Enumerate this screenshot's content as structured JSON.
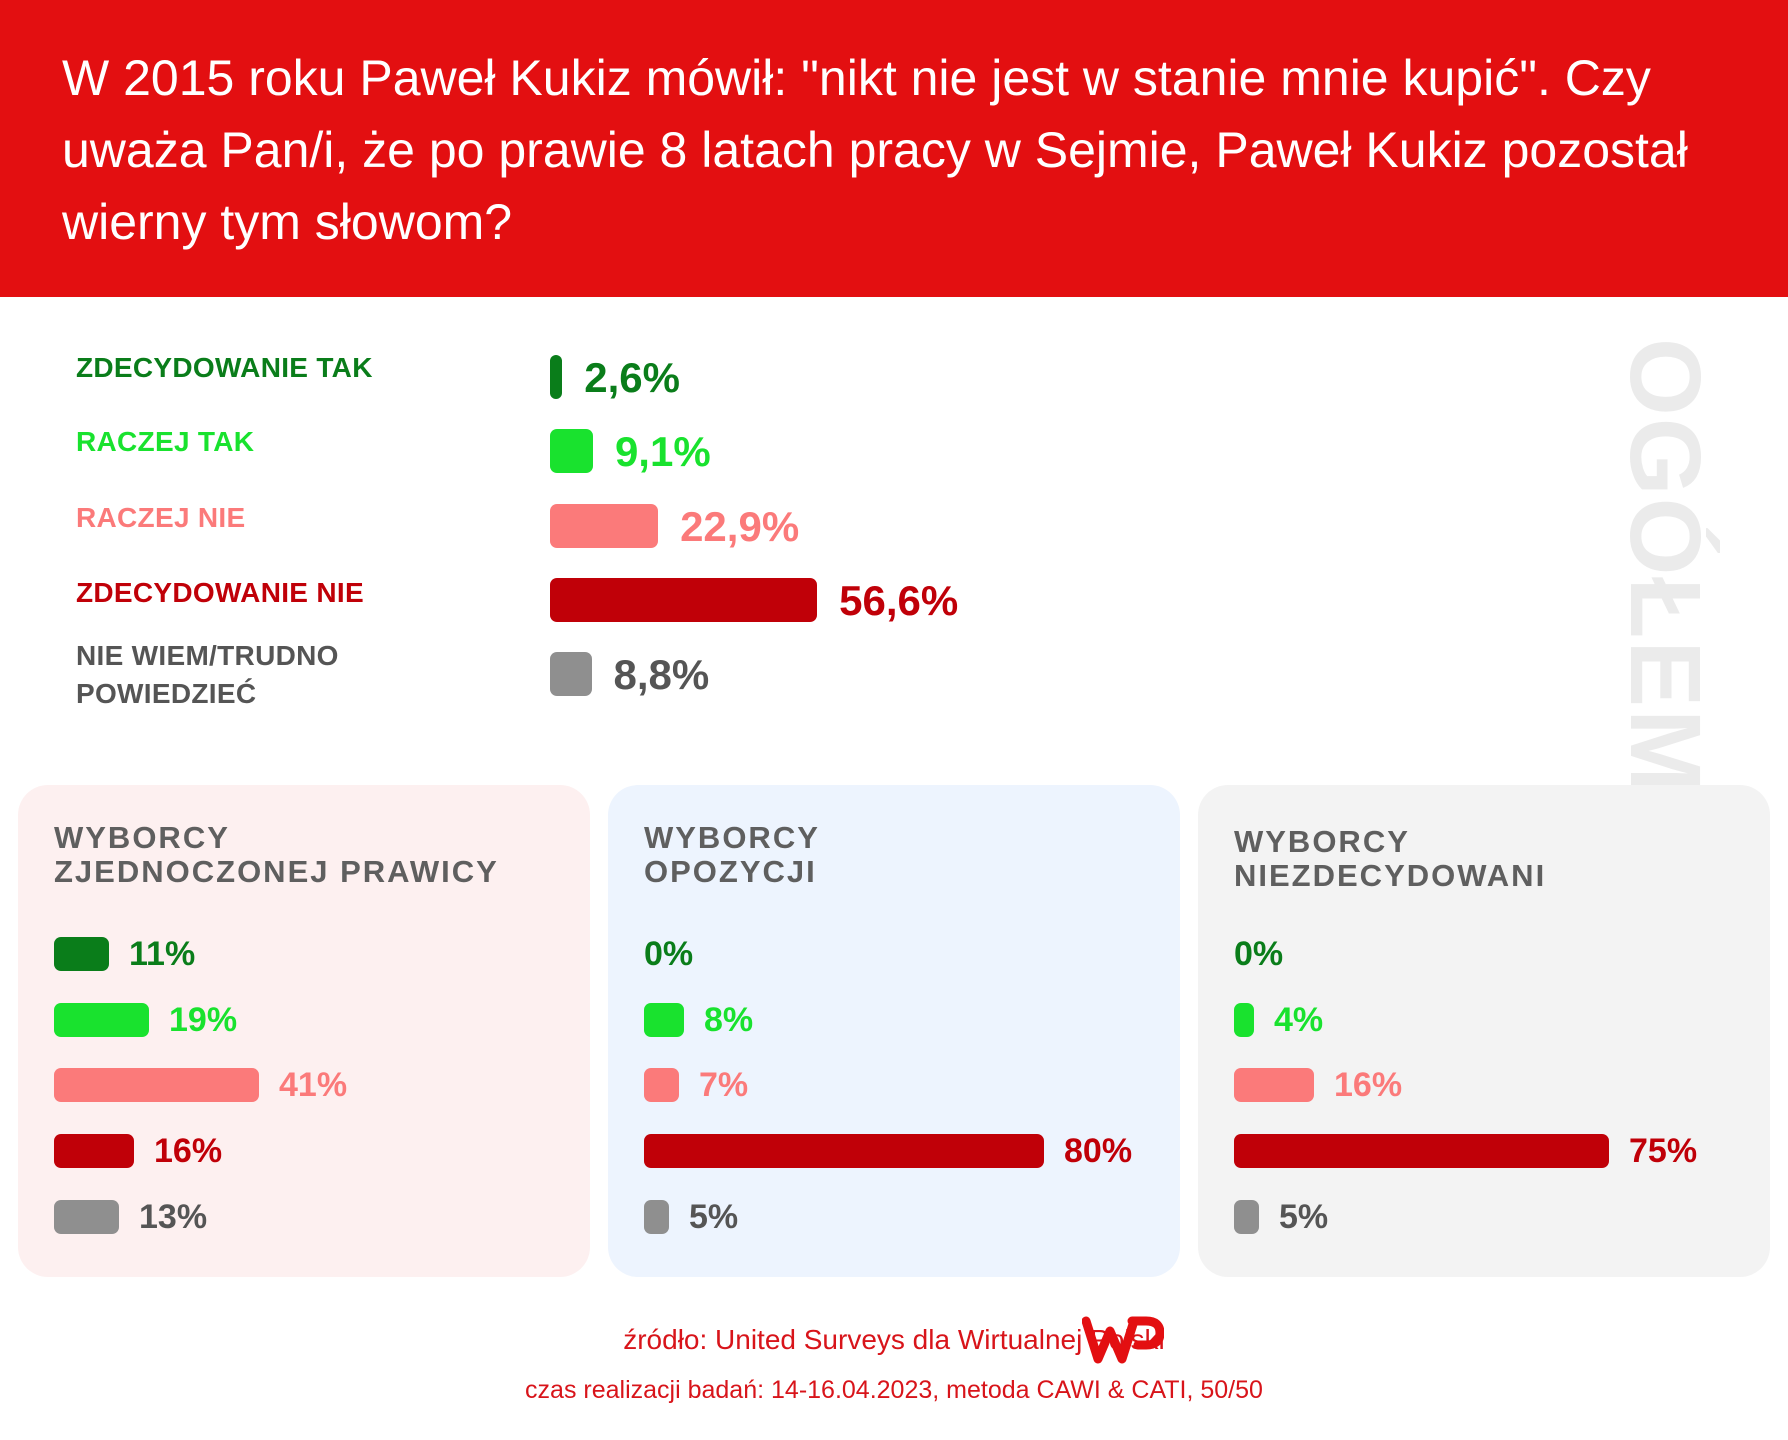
{
  "header": {
    "title": "W 2015 roku Paweł Kukiz mówił: \"nikt nie jest w stanie mnie kupić\". Czy uważa Pan/i, że po prawie 8 latach pracy w Sejmie, Paweł Kukiz pozostał wierny tym słowom?"
  },
  "colors": {
    "header_bg": "#e30f11",
    "zdecydowanie_tak": "#0a7d1a",
    "raczej_tak": "#19e22e",
    "raczej_nie": "#fb7a7a",
    "zdecydowanie_nie": "#c00008",
    "nie_wiem": "#8f8f8f",
    "panel_prawica_bg": "#fdf0f0",
    "panel_opozycja_bg": "#edf4fe",
    "panel_niezdecydowani_bg": "#f3f3f3"
  },
  "side_label": "OGÓŁEM",
  "chart_data": [
    {
      "type": "bar",
      "orientation": "horizontal",
      "title": "OGÓŁEM",
      "categories": [
        "ZDECYDOWANIE TAK",
        "RACZEJ TAK",
        "RACZEJ NIE",
        "ZDECYDOWANIE NIE",
        "NIE WIEM/TRUDNO POWIEDZIEĆ"
      ],
      "values": [
        2.6,
        9.1,
        22.9,
        56.6,
        8.8
      ],
      "value_labels": [
        "2,6%",
        "9,1%",
        "22,9%",
        "56,6%",
        "8,8%"
      ],
      "colors": [
        "#0a7d1a",
        "#19e22e",
        "#fb7a7a",
        "#c00008",
        "#8f8f8f"
      ]
    },
    {
      "type": "bar",
      "orientation": "horizontal",
      "title": "WYBORCY ZJEDNOCZONEJ PRAWICY",
      "values": [
        11,
        19,
        41,
        16,
        13
      ],
      "value_labels": [
        "11%",
        "19%",
        "41%",
        "16%",
        "13%"
      ],
      "colors": [
        "#0a7d1a",
        "#19e22e",
        "#fb7a7a",
        "#c00008",
        "#8f8f8f"
      ]
    },
    {
      "type": "bar",
      "orientation": "horizontal",
      "title": "WYBORCY OPOZYCJI",
      "values": [
        0,
        8,
        7,
        80,
        5
      ],
      "value_labels": [
        "0%",
        "8%",
        "7%",
        "80%",
        "5%"
      ],
      "colors": [
        "#0a7d1a",
        "#19e22e",
        "#fb7a7a",
        "#c00008",
        "#8f8f8f"
      ]
    },
    {
      "type": "bar",
      "orientation": "horizontal",
      "title": "WYBORCY NIEZDECYDOWANI",
      "values": [
        0,
        4,
        16,
        75,
        5
      ],
      "value_labels": [
        "0%",
        "4%",
        "16%",
        "75%",
        "5%"
      ],
      "colors": [
        "#0a7d1a",
        "#19e22e",
        "#fb7a7a",
        "#c00008",
        "#8f8f8f"
      ]
    }
  ],
  "panels": [
    {
      "title_line1": "WYBORCY",
      "title_line2": "ZJEDNOCZONEJ PRAWICY",
      "bg": "#fdf0f0"
    },
    {
      "title_line1": "WYBORCY",
      "title_line2": "OPOZYCJI",
      "bg": "#edf4fe"
    },
    {
      "title_line1": "WYBORCY",
      "title_line2": "NIEZDECYDOWANI",
      "bg": "#f3f3f3"
    }
  ],
  "footer": {
    "source": "źródło: United Surveys dla Wirtualnej Polski",
    "method": "czas realizacji badań: 14-16.04.2023, metoda CAWI & CATI, 50/50",
    "logo": "wp-logo"
  }
}
